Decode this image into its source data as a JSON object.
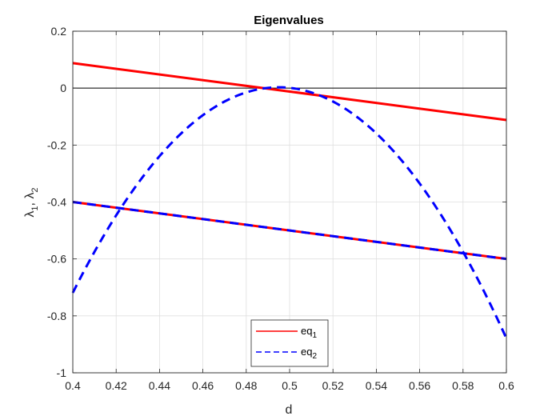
{
  "chart_data": {
    "type": "line",
    "title": "Eigenvalues",
    "xlabel": "d",
    "ylabel": {
      "base": "λ",
      "parts": [
        "λ",
        "1",
        ", λ",
        "2"
      ]
    },
    "xlim": [
      0.4,
      0.6
    ],
    "ylim": [
      -1,
      0.2
    ],
    "xticks": [
      "0.4",
      "0.42",
      "0.44",
      "0.46",
      "0.48",
      "0.5",
      "0.52",
      "0.54",
      "0.56",
      "0.58",
      "0.6"
    ],
    "yticks": [
      "-1",
      "-0.8",
      "-0.6",
      "-0.4",
      "-0.2",
      "0",
      "0.2"
    ],
    "grid": true,
    "legend_position": "bottom-center",
    "series": [
      {
        "name": "eq1",
        "legend_base": "eq",
        "legend_sub": "1",
        "color": "#ff0000",
        "style": "solid",
        "lines": [
          {
            "x": [
              0.4,
              0.6
            ],
            "y": [
              0.088,
              -0.112
            ]
          },
          {
            "x": [
              0.4,
              0.6
            ],
            "y": [
              -0.4,
              -0.6
            ]
          }
        ]
      },
      {
        "name": "eq2",
        "legend_base": "eq",
        "legend_sub": "2",
        "color": "#0000ff",
        "style": "dashed",
        "curve": {
          "type": "parabola",
          "vertex_x": 0.495,
          "vertex_y": 0.003,
          "a": -80
        },
        "lines": [
          {
            "x": [
              0.4,
              0.6
            ],
            "y": [
              -0.4,
              -0.6
            ]
          }
        ]
      }
    ],
    "reference_line": {
      "y": 0,
      "color": "#000000"
    }
  }
}
